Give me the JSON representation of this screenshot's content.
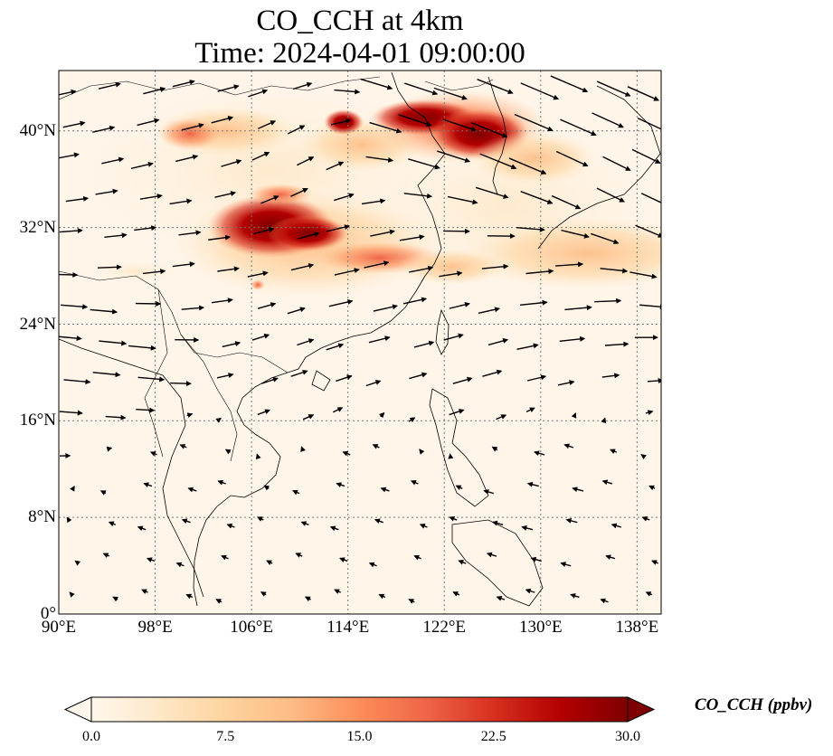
{
  "figure": {
    "title_line1": "CO_CCH at 4km",
    "title_line2": "Time: 2024-04-01 09:00:00"
  },
  "map": {
    "projection": "PlateCarree",
    "lon_range": [
      90,
      140
    ],
    "lat_range": [
      0,
      45
    ],
    "gridlines": "dotted",
    "coastlines": true,
    "borders": true,
    "x_ticks": [
      "90°E",
      "98°E",
      "106°E",
      "114°E",
      "122°E",
      "130°E",
      "138°E"
    ],
    "y_ticks": [
      "0°",
      "8°N",
      "16°N",
      "24°N",
      "32°N",
      "40°N"
    ],
    "x_tick_values": [
      90,
      98,
      106,
      114,
      122,
      130,
      138
    ],
    "y_tick_values": [
      0,
      8,
      16,
      24,
      32,
      40
    ]
  },
  "colorbar": {
    "label": "CO_CCH (ppbv)",
    "colormap": "OrRd",
    "range": [
      0,
      30
    ],
    "extend": "both",
    "ticks": [
      "0.0",
      "7.5",
      "15.0",
      "22.5",
      "30.0"
    ],
    "tick_values": [
      0,
      7.5,
      15,
      22.5,
      30
    ],
    "colors": [
      "#fff7ec",
      "#fee8c8",
      "#fdd49e",
      "#fdbb84",
      "#fc8d59",
      "#ef6548",
      "#d7301f",
      "#b30000",
      "#7f0000"
    ]
  },
  "chart_data": {
    "type": "heatmap",
    "title": "CO_CCH at 4km\nTime: 2024-04-01 09:00:00",
    "variable": "CO_CCH (ppbv)",
    "plumes": [
      {
        "lon": 108.5,
        "lat": 31.5,
        "value": 30
      },
      {
        "lon": 111.5,
        "lat": 30.5,
        "value": 28
      },
      {
        "lon": 121.5,
        "lat": 40.5,
        "value": 30
      },
      {
        "lon": 126.0,
        "lat": 39.5,
        "value": 26
      },
      {
        "lon": 118.0,
        "lat": 40.8,
        "value": 20
      },
      {
        "lon": 102.5,
        "lat": 39.7,
        "value": 16
      },
      {
        "lon": 114.5,
        "lat": 35.0,
        "value": 12
      },
      {
        "lon": 119.0,
        "lat": 28.5,
        "value": 15
      },
      {
        "lon": 128.0,
        "lat": 30.0,
        "value": 7
      }
    ],
    "wind_vectors": [
      {
        "lon": 100,
        "lat": 40,
        "u": 8,
        "v": 2
      },
      {
        "lon": 110,
        "lat": 38,
        "u": 6,
        "v": 3
      },
      {
        "lon": 120,
        "lat": 42,
        "u": 12,
        "v": -4
      },
      {
        "lon": 130,
        "lat": 40,
        "u": 14,
        "v": -6
      },
      {
        "lon": 135,
        "lat": 36,
        "u": 10,
        "v": -5
      },
      {
        "lon": 100,
        "lat": 30,
        "u": 8,
        "v": 1
      },
      {
        "lon": 115,
        "lat": 28,
        "u": 9,
        "v": 2
      },
      {
        "lon": 130,
        "lat": 27,
        "u": 10,
        "v": 1
      },
      {
        "lon": 95,
        "lat": 22,
        "u": 10,
        "v": -1
      },
      {
        "lon": 110,
        "lat": 22,
        "u": 6,
        "v": 2
      },
      {
        "lon": 125,
        "lat": 22,
        "u": 7,
        "v": 2
      },
      {
        "lon": 100,
        "lat": 10,
        "u": -3,
        "v": 1
      },
      {
        "lon": 115,
        "lat": 10,
        "u": -3,
        "v": 1
      },
      {
        "lon": 130,
        "lat": 10,
        "u": -4,
        "v": 1
      }
    ]
  }
}
